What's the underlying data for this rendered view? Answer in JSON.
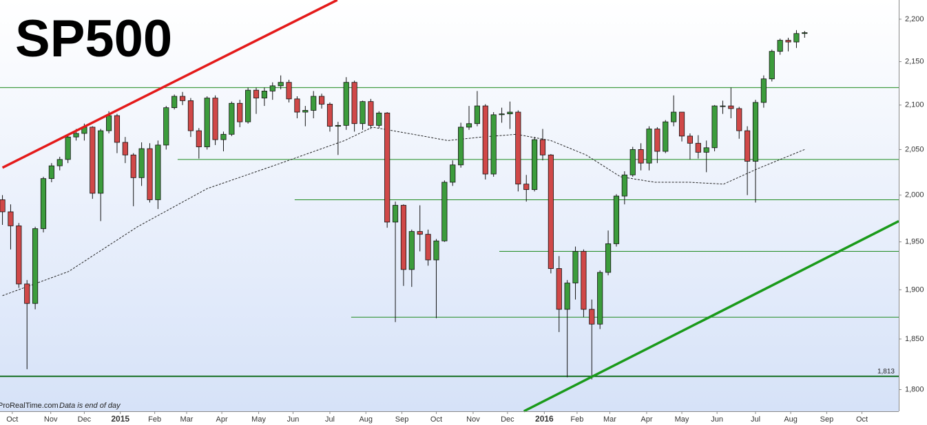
{
  "chart_data": {
    "type": "candlestick",
    "title": "SP500",
    "source": "ProRealTime.com",
    "note": "Data is end of day",
    "log_scale": true,
    "up_color": "#3c9c3c",
    "down_color": "#d04848",
    "xlim": [
      -0.3,
      109.5
    ],
    "ylim": [
      1779,
      2223
    ],
    "yticks": [
      {
        "value": 1800,
        "label": "1,800"
      },
      {
        "value": 1850,
        "label": "1,850"
      },
      {
        "value": 1900,
        "label": "1,900"
      },
      {
        "value": 1950,
        "label": "1,950"
      },
      {
        "value": 2000,
        "label": "2,000"
      },
      {
        "value": 2050,
        "label": "2,050"
      },
      {
        "value": 2100,
        "label": "2,100"
      },
      {
        "value": 2150,
        "label": "2,150"
      },
      {
        "value": 2200,
        "label": "2,200"
      }
    ],
    "xticks": [
      {
        "value": 1.2,
        "label": "Oct"
      },
      {
        "value": 5.9,
        "label": "Nov"
      },
      {
        "value": 10.0,
        "label": "Dec"
      },
      {
        "value": 14.4,
        "label": "2015"
      },
      {
        "value": 18.6,
        "label": "Feb"
      },
      {
        "value": 22.5,
        "label": "Mar"
      },
      {
        "value": 26.8,
        "label": "Apr"
      },
      {
        "value": 31.3,
        "label": "May"
      },
      {
        "value": 35.5,
        "label": "Jun"
      },
      {
        "value": 40.0,
        "label": "Jul"
      },
      {
        "value": 44.4,
        "label": "Aug"
      },
      {
        "value": 48.8,
        "label": "Sep"
      },
      {
        "value": 53.0,
        "label": "Oct"
      },
      {
        "value": 57.5,
        "label": "Nov"
      },
      {
        "value": 61.7,
        "label": "Dec"
      },
      {
        "value": 66.2,
        "label": "2016"
      },
      {
        "value": 70.2,
        "label": "Feb"
      },
      {
        "value": 74.2,
        "label": "Mar"
      },
      {
        "value": 78.7,
        "label": "Apr"
      },
      {
        "value": 83.0,
        "label": "May"
      },
      {
        "value": 87.3,
        "label": "Jun"
      },
      {
        "value": 92.0,
        "label": "Jul"
      },
      {
        "value": 96.3,
        "label": "Aug"
      },
      {
        "value": 100.7,
        "label": "Sep"
      },
      {
        "value": 105.0,
        "label": "Oct"
      }
    ],
    "x": [
      0,
      1,
      2,
      3,
      4,
      5,
      6,
      7,
      8,
      9,
      10,
      11,
      12,
      13,
      14,
      15,
      16,
      17,
      18,
      19,
      20,
      21,
      22,
      23,
      24,
      25,
      26,
      27,
      28,
      29,
      30,
      31,
      32,
      33,
      34,
      35,
      36,
      37,
      38,
      39,
      40,
      41,
      42,
      43,
      44,
      45,
      46,
      47,
      48,
      49,
      50,
      51,
      52,
      53,
      54,
      55,
      56,
      57,
      58,
      59,
      60,
      61,
      62,
      63,
      64,
      65,
      66,
      67,
      68,
      69,
      70,
      71,
      72,
      73,
      74,
      75,
      76,
      77,
      78,
      79,
      80,
      81,
      82,
      83,
      84,
      85,
      86,
      87,
      88,
      89,
      90,
      91,
      92,
      93,
      94,
      95,
      96,
      97,
      98
    ],
    "open": [
      1995,
      1982,
      1967,
      1906,
      1886,
      1964,
      2018,
      2032,
      2039,
      2064,
      2068,
      2075,
      2002,
      2071,
      2088,
      2058,
      2044,
      2019,
      2051,
      1995,
      2055,
      2097,
      2110,
      2105,
      2071,
      2053,
      2108,
      2061,
      2067,
      2102,
      2081,
      2117,
      2108,
      2116,
      2122,
      2126,
      2107,
      2092,
      2094,
      2110,
      2101,
      2076,
      2077,
      2126,
      2079,
      2104,
      2077,
      2091,
      1971,
      1989,
      1921,
      1961,
      1958,
      1931,
      1951,
      2014,
      2033,
      2075,
      2079,
      2099,
      2023,
      2089,
      2090,
      2092,
      2012,
      2006,
      2061,
      2044,
      1922,
      1880,
      1907,
      1940,
      1880,
      1865,
      1918,
      1948,
      1999,
      2022,
      2050,
      2035,
      2073,
      2048,
      2081,
      2092,
      2065,
      2057,
      2047,
      2052,
      2099,
      2099,
      2096,
      2071,
      2037,
      2103,
      2130,
      2162,
      2175,
      2173,
      2183
    ],
    "high": [
      2000,
      1990,
      1970,
      1910,
      1966,
      2020,
      2035,
      2042,
      2066,
      2073,
      2079,
      2076,
      2073,
      2093,
      2090,
      2064,
      2046,
      2058,
      2057,
      2060,
      2099,
      2112,
      2115,
      2108,
      2074,
      2110,
      2111,
      2070,
      2104,
      2106,
      2120,
      2120,
      2120,
      2126,
      2134,
      2129,
      2110,
      2099,
      2116,
      2113,
      2103,
      2081,
      2132,
      2128,
      2105,
      2107,
      2093,
      2092,
      1993,
      1990,
      1963,
      1989,
      1963,
      1953,
      2016,
      2038,
      2080,
      2099,
      2116,
      2101,
      2092,
      2097,
      2104,
      2094,
      2022,
      2064,
      2073,
      2045,
      1935,
      1910,
      1945,
      1942,
      1890,
      1920,
      1962,
      2001,
      2026,
      2053,
      2057,
      2076,
      2075,
      2083,
      2111,
      2092,
      2068,
      2066,
      2060,
      2100,
      2105,
      2120,
      2098,
      2076,
      2106,
      2134,
      2164,
      2177,
      2178,
      2187,
      2186
    ],
    "low": [
      1968,
      1942,
      1902,
      1820,
      1880,
      1960,
      2014,
      2027,
      2035,
      2060,
      2060,
      1996,
      1972,
      2068,
      2046,
      2035,
      1988,
      2010,
      1992,
      1985,
      2050,
      2095,
      2100,
      2064,
      2040,
      2050,
      2055,
      2048,
      2065,
      2075,
      2079,
      2090,
      2099,
      2106,
      2118,
      2103,
      2085,
      2076,
      2085,
      2096,
      2070,
      2044,
      2072,
      2070,
      2072,
      2073,
      2074,
      1965,
      1867,
      1904,
      1903,
      1940,
      1925,
      1871,
      1950,
      2010,
      2030,
      2072,
      2076,
      2017,
      2020,
      2080,
      2073,
      2004,
      1993,
      2004,
      2038,
      1917,
      1857,
      1812,
      1890,
      1872,
      1810,
      1860,
      1915,
      1945,
      1990,
      2020,
      2027,
      2027,
      2035,
      2046,
      2076,
      2059,
      2039,
      2040,
      2025,
      2048,
      2090,
      2085,
      2062,
      2000,
      1992,
      2097,
      2127,
      2158,
      2162,
      2166,
      2178
    ],
    "close": [
      1982,
      1967,
      1906,
      1886,
      1964,
      2018,
      2032,
      2039,
      2064,
      2068,
      2075,
      2002,
      2071,
      2088,
      2058,
      2044,
      2019,
      2051,
      1995,
      2055,
      2097,
      2110,
      2105,
      2071,
      2053,
      2108,
      2061,
      2067,
      2102,
      2081,
      2117,
      2108,
      2116,
      2122,
      2126,
      2107,
      2092,
      2094,
      2110,
      2101,
      2076,
      2077,
      2126,
      2079,
      2104,
      2077,
      2091,
      1971,
      1989,
      1921,
      1961,
      1958,
      1931,
      1951,
      2014,
      2033,
      2075,
      2079,
      2099,
      2023,
      2089,
      2090,
      2092,
      2012,
      2006,
      2061,
      2044,
      1922,
      1880,
      1907,
      1940,
      1880,
      1865,
      1918,
      1948,
      1999,
      2022,
      2050,
      2035,
      2073,
      2048,
      2081,
      2092,
      2065,
      2057,
      2047,
      2052,
      2099,
      2099,
      2096,
      2071,
      2037,
      2103,
      2130,
      2162,
      2175,
      2173,
      2183,
      2184
    ],
    "moving_average": {
      "x": [
        0,
        8.1,
        16.5,
        25,
        33.4,
        41.8,
        45.2,
        50.2,
        54.4,
        58.6,
        62.8,
        67,
        71.3,
        75.5,
        79.7,
        83.9,
        88.1,
        92.3,
        98
      ],
      "values": [
        1894,
        1919,
        1966,
        2007,
        2033,
        2060,
        2075,
        2067,
        2060,
        2064,
        2067,
        2060,
        2044,
        2020,
        2014,
        2014,
        2012,
        2029,
        2050
      ]
    },
    "levels": [
      {
        "value": 2120,
        "color": "#1e8a1e"
      },
      {
        "value": 2039,
        "start": 21.4,
        "color": "#1e8a1e"
      },
      {
        "value": 1995,
        "start": 35.7,
        "color": "#1e8a1e"
      },
      {
        "value": 1940,
        "start": 60.7,
        "color": "#1e8a1e"
      },
      {
        "value": 1872,
        "start": 42.6,
        "color": "#1e8a1e"
      },
      {
        "value": 1813,
        "label": "1,813",
        "color": "#0d6b1a"
      }
    ],
    "trendlines": [
      {
        "color": "#e41a1a",
        "x": [
          0,
          40.9
        ],
        "values": [
          2030,
          2223
        ]
      },
      {
        "color": "#1a9a1a",
        "x": [
          63.7,
          109.5
        ],
        "values": [
          1779,
          1972
        ]
      }
    ]
  }
}
